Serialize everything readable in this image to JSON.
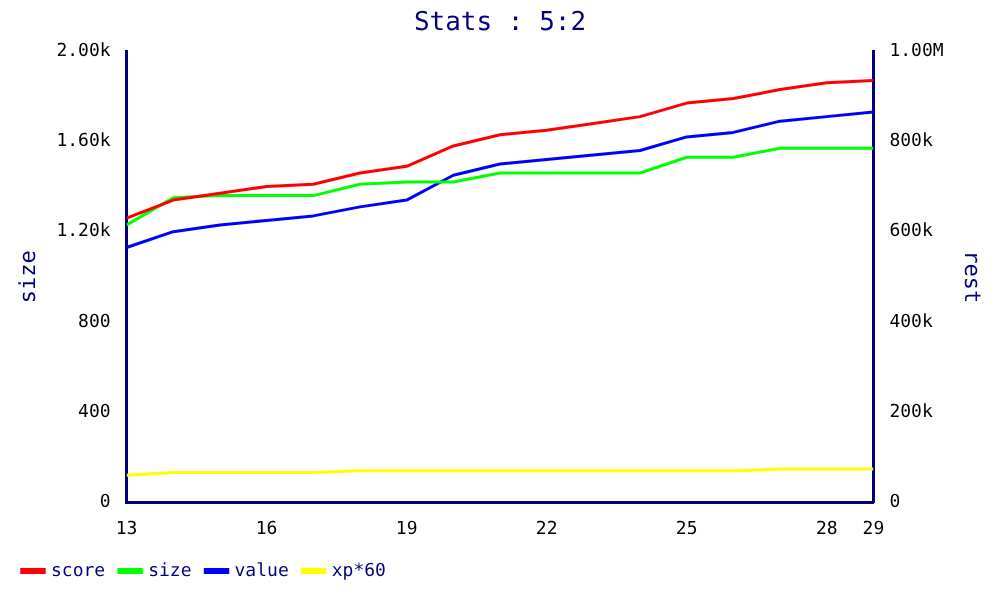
{
  "chart_data": {
    "type": "line",
    "title": "Stats : 5:2",
    "ylabel": "size",
    "y2label": "rest",
    "x": [
      13,
      14,
      15,
      16,
      17,
      18,
      19,
      20,
      21,
      22,
      23,
      24,
      25,
      26,
      27,
      28,
      29
    ],
    "xlim": [
      13,
      29
    ],
    "xticks": [
      13,
      16,
      19,
      22,
      25,
      28,
      29
    ],
    "ylim": [
      0,
      2000
    ],
    "yticks": [
      0,
      400,
      800,
      {
        "value": 1200,
        "label": "1.20k"
      },
      {
        "value": 1600,
        "label": "1.60k"
      },
      {
        "value": 2000,
        "label": "2.00k"
      }
    ],
    "y2lim": [
      0,
      1000000
    ],
    "y2ticks": [
      {
        "value": 0,
        "label": "0"
      },
      {
        "value": 200000,
        "label": "200k"
      },
      {
        "value": 400000,
        "label": "400k"
      },
      {
        "value": 600000,
        "label": "600k"
      },
      {
        "value": 800000,
        "label": "800k"
      },
      {
        "value": 1000000,
        "label": "1.00M"
      }
    ],
    "series": [
      {
        "name": "score",
        "color": "#ff0000",
        "values": [
          1260,
          1340,
          1370,
          1400,
          1410,
          1460,
          1490,
          1580,
          1630,
          1650,
          1680,
          1710,
          1770,
          1790,
          1830,
          1860,
          1870
        ]
      },
      {
        "name": "size",
        "color": "#00ff00",
        "values": [
          1230,
          1350,
          1360,
          1360,
          1360,
          1410,
          1420,
          1420,
          1460,
          1460,
          1460,
          1460,
          1530,
          1530,
          1570,
          1570,
          1570
        ]
      },
      {
        "name": "value",
        "color": "#0000ff",
        "values": [
          1130,
          1200,
          1230,
          1250,
          1270,
          1310,
          1340,
          1450,
          1500,
          1520,
          1540,
          1560,
          1620,
          1640,
          1690,
          1710,
          1730
        ]
      },
      {
        "name": "xp*60",
        "color": "#ffff00",
        "axis": "y2",
        "values": [
          60000,
          66000,
          66000,
          66000,
          66000,
          70000,
          70000,
          70000,
          70000,
          70000,
          70000,
          70000,
          70000,
          70000,
          74000,
          74000,
          74000
        ]
      }
    ],
    "grid": false,
    "legend": "bottom left",
    "marker": "none",
    "line_style": "solid"
  }
}
